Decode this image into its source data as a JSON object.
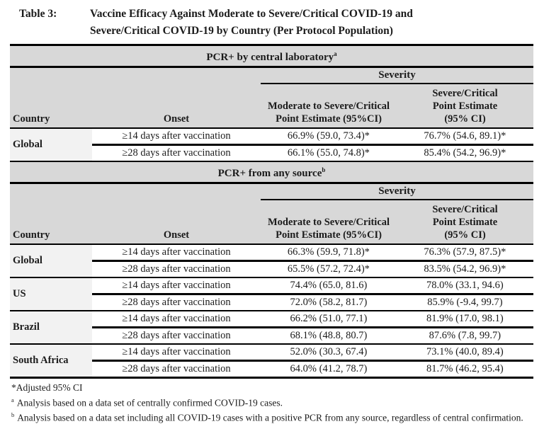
{
  "title": {
    "label": "Table 3:",
    "line1": "Vaccine Efficacy Against Moderate to Severe/Critical COVID-19 and",
    "line2": "Severe/Critical COVID-19 by Country (Per Protocol Population)"
  },
  "columns": {
    "country": "Country",
    "onset": "Onset",
    "severity": "Severity",
    "moderate": "Moderate to Severe/Critical Point Estimate (95%CI)",
    "severe": "Severe/Critical Point Estimate (95% CI)"
  },
  "sections": [
    {
      "heading": "PCR+ by central laboratory",
      "heading_sup": "a",
      "groups": [
        {
          "country": "Global",
          "rows": [
            {
              "onset": "≥14 days after vaccination",
              "moderate": "66.9% (59.0, 73.4)*",
              "severe": "76.7% (54.6, 89.1)*"
            },
            {
              "onset": "≥28 days after vaccination",
              "moderate": "66.1% (55.0, 74.8)*",
              "severe": "85.4% (54.2, 96.9)*"
            }
          ]
        }
      ]
    },
    {
      "heading": "PCR+ from any source",
      "heading_sup": "b",
      "groups": [
        {
          "country": "Global",
          "rows": [
            {
              "onset": "≥14 days after vaccination",
              "moderate": "66.3% (59.9, 71.8)*",
              "severe": "76.3% (57.9, 87.5)*"
            },
            {
              "onset": "≥28 days after vaccination",
              "moderate": "65.5% (57.2, 72.4)*",
              "severe": "83.5% (54.2, 96.9)*"
            }
          ]
        },
        {
          "country": "US",
          "rows": [
            {
              "onset": "≥14 days after vaccination",
              "moderate": "74.4% (65.0, 81.6)",
              "severe": "78.0% (33.1, 94.6)"
            },
            {
              "onset": "≥28 days after vaccination",
              "moderate": "72.0% (58.2, 81.7)",
              "severe": "85.9% (-9.4, 99.7)"
            }
          ]
        },
        {
          "country": "Brazil",
          "rows": [
            {
              "onset": "≥14 days after vaccination",
              "moderate": "66.2% (51.0, 77.1)",
              "severe": "81.9% (17.0, 98.1)"
            },
            {
              "onset": "≥28 days after vaccination",
              "moderate": "68.1% (48.8, 80.7)",
              "severe": "87.6% (7.8, 99.7)"
            }
          ]
        },
        {
          "country": "South Africa",
          "rows": [
            {
              "onset": "≥14 days after vaccination",
              "moderate": "52.0% (30.3, 67.4)",
              "severe": "73.1% (40.0, 89.4)"
            },
            {
              "onset": "≥28 days after vaccination",
              "moderate": "64.0% (41.2, 78.7)",
              "severe": "81.7% (46.2, 95.4)"
            }
          ]
        }
      ]
    }
  ],
  "footnotes": [
    {
      "marker": "*",
      "superscript": false,
      "text": "Adjusted 95% CI"
    },
    {
      "marker": "a",
      "superscript": true,
      "text": "Analysis based on a data set of centrally confirmed COVID-19 cases."
    },
    {
      "marker": "b",
      "superscript": true,
      "text": "Analysis based on a data set including all COVID-19 cases with a positive PCR from any source, regardless of central confirmation."
    }
  ],
  "colors": {
    "header_bg": "#d8d8d8",
    "country_bg": "#f2f2f2",
    "border": "#000000",
    "text": "#1b1b1b",
    "page_bg": "#ffffff"
  }
}
